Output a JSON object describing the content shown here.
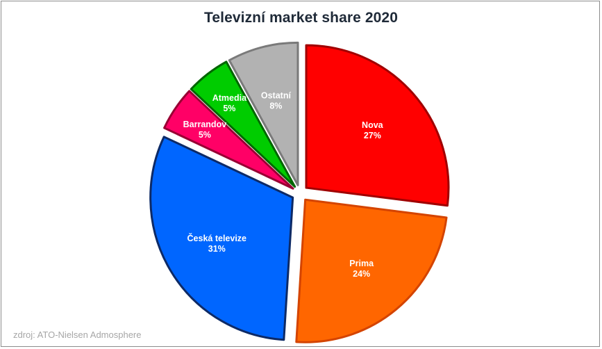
{
  "chart_data": {
    "type": "pie",
    "title": "Televizní market share 2020",
    "source": "zdroj: ATO-Nielsen Admosphere",
    "slices": [
      {
        "label": "Nova",
        "value": 27,
        "display": "27%",
        "color": "#ff0000",
        "edge": "#a00000"
      },
      {
        "label": "Prima",
        "value": 24,
        "display": "24%",
        "color": "#ff6600",
        "edge": "#d44400"
      },
      {
        "label": "Česká televize",
        "value": 31,
        "display": "31%",
        "color": "#0066ff",
        "edge": "#0d2a66"
      },
      {
        "label": "Barrandov",
        "value": 5,
        "display": "5%",
        "color": "#ff0066",
        "edge": "#990033"
      },
      {
        "label": "Atmedia",
        "value": 5,
        "display": "5%",
        "color": "#00cc00",
        "edge": "#006600"
      },
      {
        "label": "Ostatní",
        "value": 8,
        "display": "8%",
        "color": "#b2b2b2",
        "edge": "#7a7a7a"
      }
    ],
    "legend": "none"
  }
}
